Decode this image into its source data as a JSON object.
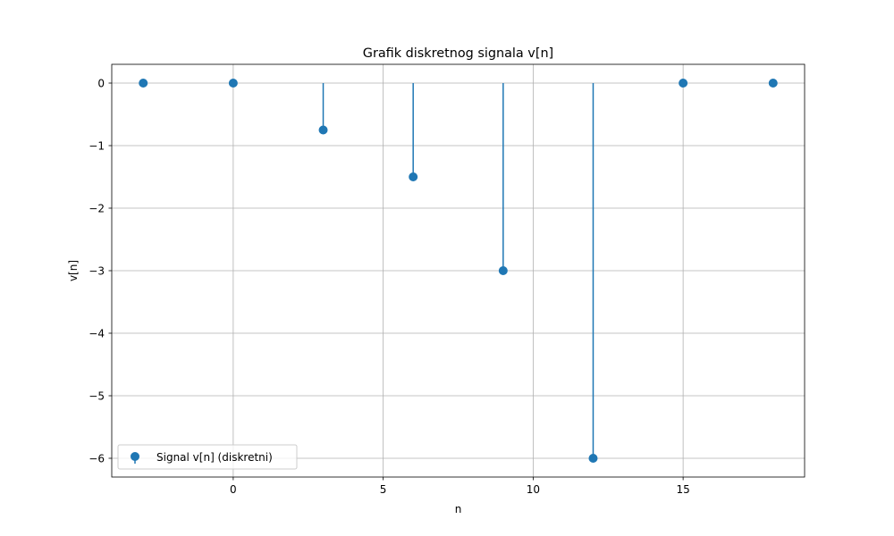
{
  "chart_data": {
    "type": "stem",
    "title": "Grafik diskretnog signala v[n]",
    "xlabel": "n",
    "ylabel": "v[n]",
    "x": [
      -3,
      0,
      3,
      6,
      9,
      12,
      15,
      18
    ],
    "series": [
      {
        "name": "Signal v[n] (diskretni)",
        "values": [
          0,
          0,
          -0.75,
          -1.5,
          -3,
          -6,
          0,
          0
        ],
        "color": "#1f77b4"
      }
    ],
    "xlim": [
      -4.05,
      19.05
    ],
    "ylim": [
      -6.3,
      0.3
    ],
    "xticks": [
      0,
      5,
      10,
      15
    ],
    "xtick_labels": [
      "0",
      "5",
      "10",
      "15"
    ],
    "yticks": [
      0,
      -1,
      -2,
      -3,
      -4,
      -5,
      -6
    ],
    "ytick_labels": [
      "0",
      "−1",
      "−2",
      "−3",
      "−4",
      "−5",
      "−6"
    ],
    "grid": true,
    "legend_position": "lower-left",
    "baseline": 0
  }
}
